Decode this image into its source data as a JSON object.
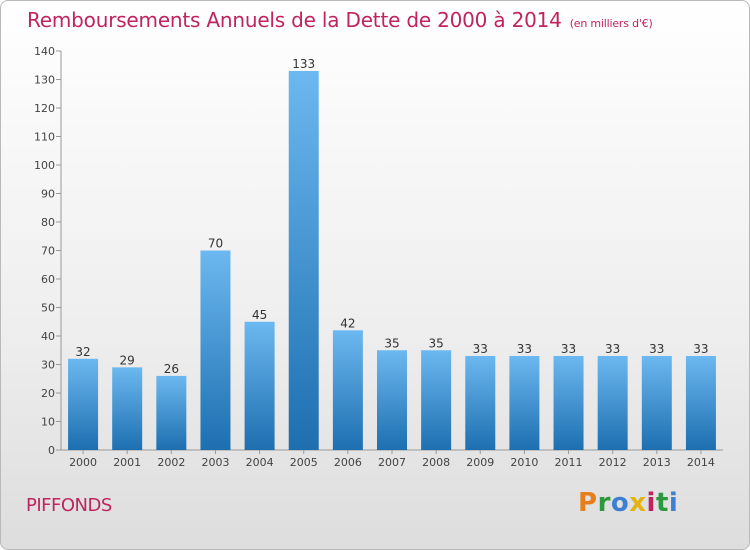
{
  "title": "Remboursements Annuels de la Dette de 2000 à 2014",
  "unit": "(en milliers d'€)",
  "commune": "PIFFONDS",
  "logo": "Proxiti",
  "colors": {
    "title": "#c0245e",
    "bar_top": "#6cb8f0",
    "bar_bottom": "#1d6fb0"
  },
  "chart_data": {
    "type": "bar",
    "title": "Remboursements Annuels de la Dette de 2000 à 2014",
    "categories": [
      "2000",
      "2001",
      "2002",
      "2003",
      "2004",
      "2005",
      "2006",
      "2007",
      "2008",
      "2009",
      "2010",
      "2011",
      "2012",
      "2013",
      "2014"
    ],
    "values": [
      32,
      29,
      26,
      70,
      45,
      133,
      42,
      35,
      35,
      33,
      33,
      33,
      33,
      33,
      33
    ],
    "ylim": [
      0,
      140
    ],
    "yticks": [
      0,
      10,
      20,
      30,
      40,
      50,
      60,
      70,
      80,
      90,
      100,
      110,
      120,
      130,
      140
    ],
    "grid": false,
    "legend": "none"
  }
}
